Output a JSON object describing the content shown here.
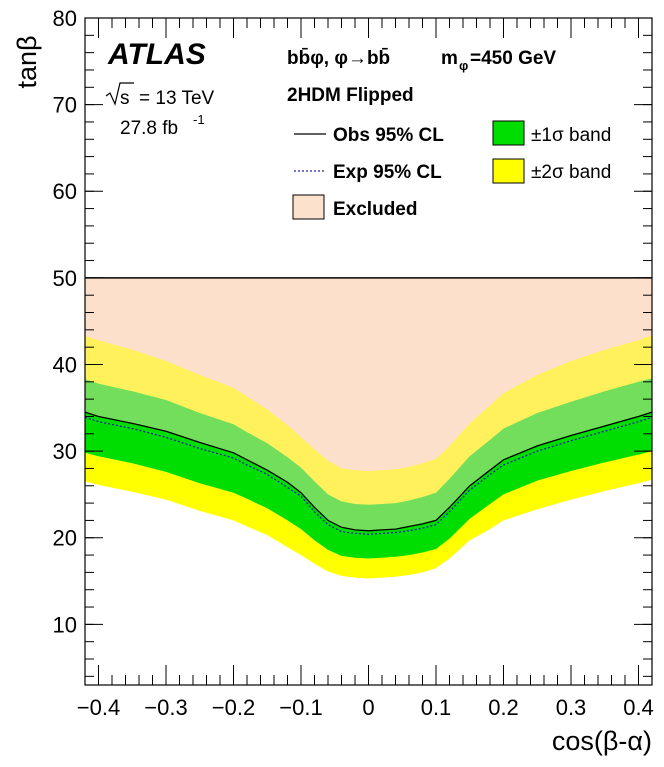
{
  "experiment": "ATLAS",
  "energy_label": "= 13 TeV",
  "energy_sqrt": "s",
  "lumi_label": "27.8 fb",
  "lumi_exp": "-1",
  "process_label": "bb̄φ, φ→bb̄",
  "mass_label": "m",
  "mass_sub": "φ",
  "mass_value": "=450 GeV",
  "model_label": "2HDM Flipped",
  "legend": {
    "obs": "Obs 95% CL",
    "exp": "Exp 95% CL",
    "one_sigma": "±1σ band",
    "two_sigma": "±2σ band",
    "excluded": "Excluded"
  },
  "colors": {
    "excluded": "#fce1cc",
    "one_sigma": "#00dd00",
    "two_sigma": "#ffff00",
    "obs_line": "#000000",
    "exp_line": "#2222aa"
  },
  "chart_data": {
    "type": "area",
    "title": "",
    "xlabel": "cos(β-α)",
    "ylabel": "tanβ",
    "xlim": [
      -0.42,
      0.42
    ],
    "ylim": [
      3,
      80
    ],
    "x_ticks": [
      -0.4,
      -0.3,
      -0.2,
      -0.1,
      0,
      0.1,
      0.2,
      0.3,
      0.4
    ],
    "x_tick_labels": [
      "−0.4",
      "−0.3",
      "−0.2",
      "−0.1",
      "0",
      "0.1",
      "0.2",
      "0.3",
      "0.4"
    ],
    "y_ticks": [
      10,
      20,
      30,
      40,
      50,
      60,
      70,
      80
    ],
    "y_tick_labels": [
      "10",
      "20",
      "30",
      "40",
      "50",
      "60",
      "70",
      "80"
    ],
    "upper_line_tanb": 50,
    "x": [
      -0.42,
      -0.4,
      -0.35,
      -0.3,
      -0.25,
      -0.2,
      -0.18,
      -0.15,
      -0.12,
      -0.1,
      -0.08,
      -0.06,
      -0.04,
      -0.02,
      0,
      0.02,
      0.04,
      0.06,
      0.08,
      0.1,
      0.12,
      0.15,
      0.18,
      0.2,
      0.25,
      0.3,
      0.35,
      0.4,
      0.42
    ],
    "series": [
      {
        "name": "Obs 95% CL",
        "values": [
          34.5,
          34.0,
          33.2,
          32.3,
          31.0,
          29.8,
          29.0,
          27.8,
          26.4,
          25.2,
          23.5,
          22.0,
          21.2,
          20.9,
          20.8,
          20.9,
          21.0,
          21.3,
          21.6,
          22.0,
          23.5,
          26.0,
          27.8,
          29.0,
          30.6,
          31.8,
          32.9,
          34.0,
          34.5
        ]
      },
      {
        "name": "Exp 95% CL",
        "values": [
          33.9,
          33.4,
          32.6,
          31.6,
          30.3,
          29.2,
          28.4,
          27.3,
          25.8,
          24.8,
          23.0,
          21.5,
          20.7,
          20.5,
          20.4,
          20.5,
          20.6,
          20.8,
          21.1,
          21.5,
          23.0,
          25.5,
          27.3,
          28.4,
          30.0,
          31.2,
          32.3,
          33.4,
          33.9
        ]
      },
      {
        "name": "-2σ",
        "values": [
          26.5,
          26.1,
          25.3,
          24.4,
          23.1,
          22.0,
          21.3,
          20.3,
          18.9,
          18.0,
          17.0,
          16.1,
          15.6,
          15.4,
          15.3,
          15.4,
          15.5,
          15.7,
          16.0,
          16.5,
          17.6,
          19.7,
          21.0,
          22.0,
          23.3,
          24.4,
          25.4,
          26.3,
          26.7
        ]
      },
      {
        "name": "-1σ",
        "values": [
          29.8,
          29.4,
          28.6,
          27.6,
          26.3,
          25.2,
          24.5,
          23.4,
          22.0,
          21.0,
          19.7,
          18.6,
          17.9,
          17.7,
          17.6,
          17.7,
          17.8,
          18.0,
          18.3,
          18.7,
          19.9,
          22.2,
          23.9,
          25.0,
          26.6,
          27.7,
          28.7,
          29.6,
          30.0
        ]
      },
      {
        "name": "+1σ",
        "values": [
          38.3,
          37.8,
          36.9,
          35.9,
          34.4,
          33.1,
          32.2,
          30.9,
          29.3,
          28.1,
          26.5,
          25.0,
          24.2,
          23.9,
          23.8,
          23.9,
          24.0,
          24.3,
          24.7,
          25.2,
          26.8,
          29.4,
          31.3,
          32.6,
          34.4,
          35.7,
          36.9,
          38.0,
          38.4
        ]
      },
      {
        "name": "+2σ",
        "values": [
          43.3,
          42.8,
          41.7,
          40.4,
          38.8,
          37.3,
          36.3,
          34.8,
          33.0,
          31.6,
          30.2,
          28.9,
          28.0,
          27.8,
          27.7,
          27.8,
          27.9,
          28.2,
          28.6,
          29.1,
          30.6,
          33.2,
          35.3,
          36.7,
          38.8,
          40.4,
          41.7,
          42.8,
          43.4
        ]
      }
    ]
  }
}
